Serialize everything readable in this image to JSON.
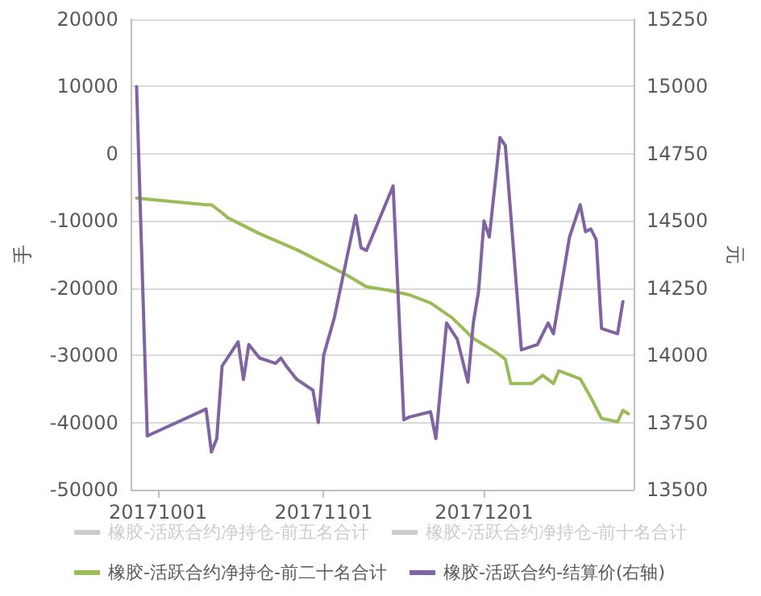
{
  "chart_data": {
    "type": "line",
    "ylabel": "手",
    "y2label": "元",
    "xlim": [
      "2017-09-26",
      "2017-12-29"
    ],
    "xticks": [
      {
        "value": "2017-10-01",
        "label": "20171001"
      },
      {
        "value": "2017-11-01",
        "label": "20171101"
      },
      {
        "value": "2017-12-01",
        "label": "20171201"
      }
    ],
    "ylim": [
      -50000,
      20000
    ],
    "yticks": [
      -50000,
      -40000,
      -30000,
      -20000,
      -10000,
      0,
      10000,
      20000
    ],
    "y2lim": [
      13500,
      15250
    ],
    "y2ticks": [
      13500,
      13750,
      14000,
      14250,
      14500,
      14750,
      15000,
      15250
    ],
    "grid": "y",
    "legend": "bottom",
    "marker": "none",
    "line_style": "solid",
    "series": [
      {
        "name": "橡胶-活跃合约净持仓-前五名合计",
        "color": "#cccccc"
      },
      {
        "name": "橡胶-活跃合约净持仓-前十名合计",
        "color": "#cccccc"
      },
      {
        "name": "橡胶-活跃合约净持仓-前二十名合计",
        "color": "#9bbb59",
        "x": [
          "2017-09-27",
          "2017-10-10",
          "2017-10-11",
          "2017-10-13",
          "2017-10-14",
          "2017-10-17",
          "2017-10-20",
          "2017-10-27",
          "2017-11-05",
          "2017-11-09",
          "2017-11-13",
          "2017-11-17",
          "2017-11-21",
          "2017-11-25",
          "2017-11-29",
          "2017-12-03",
          "2017-12-05",
          "2017-12-06",
          "2017-12-10",
          "2017-12-12",
          "2017-12-14",
          "2017-12-15",
          "2017-12-19",
          "2017-12-21",
          "2017-12-23",
          "2017-12-26",
          "2017-12-27",
          "2017-12-28"
        ],
        "values": [
          -6600,
          -7600,
          -7600,
          -8800,
          -9500,
          -10700,
          -11900,
          -14300,
          -17900,
          -19800,
          -20300,
          -21000,
          -22200,
          -24400,
          -27500,
          -29400,
          -30600,
          -34200,
          -34200,
          -33000,
          -34200,
          -32300,
          -33500,
          -36300,
          -39400,
          -39900,
          -38200,
          -38700
        ]
      },
      {
        "name": "橡胶-活跃合约-结算价(右轴)",
        "color": "#8064a2",
        "axis": "y2",
        "x": [
          "2017-09-27",
          "2017-09-29",
          "2017-10-10",
          "2017-10-11",
          "2017-10-12",
          "2017-10-13",
          "2017-10-16",
          "2017-10-17",
          "2017-10-18",
          "2017-10-20",
          "2017-10-23",
          "2017-10-24",
          "2017-10-25",
          "2017-10-27",
          "2017-10-30",
          "2017-10-31",
          "2017-11-01",
          "2017-11-03",
          "2017-11-07",
          "2017-11-08",
          "2017-11-09",
          "2017-11-14",
          "2017-11-16",
          "2017-11-17",
          "2017-11-21",
          "2017-11-22",
          "2017-11-24",
          "2017-11-26",
          "2017-11-28",
          "2017-11-29",
          "2017-11-30",
          "2017-12-01",
          "2017-12-02",
          "2017-12-04",
          "2017-12-05",
          "2017-12-08",
          "2017-12-11",
          "2017-12-13",
          "2017-12-14",
          "2017-12-17",
          "2017-12-19",
          "2017-12-20",
          "2017-12-21",
          "2017-12-22",
          "2017-12-23",
          "2017-12-26",
          "2017-12-27"
        ],
        "values": [
          15000,
          13700,
          13800,
          13640,
          13690,
          13960,
          14050,
          13910,
          14040,
          13990,
          13970,
          13990,
          13960,
          13910,
          13870,
          13750,
          14000,
          14140,
          14520,
          14400,
          14390,
          14630,
          13760,
          13770,
          13790,
          13690,
          14120,
          14060,
          13900,
          14120,
          14240,
          14500,
          14440,
          14810,
          14780,
          14020,
          14040,
          14120,
          14080,
          14440,
          14560,
          14460,
          14470,
          14430,
          14100,
          14080,
          14200
        ]
      }
    ]
  }
}
